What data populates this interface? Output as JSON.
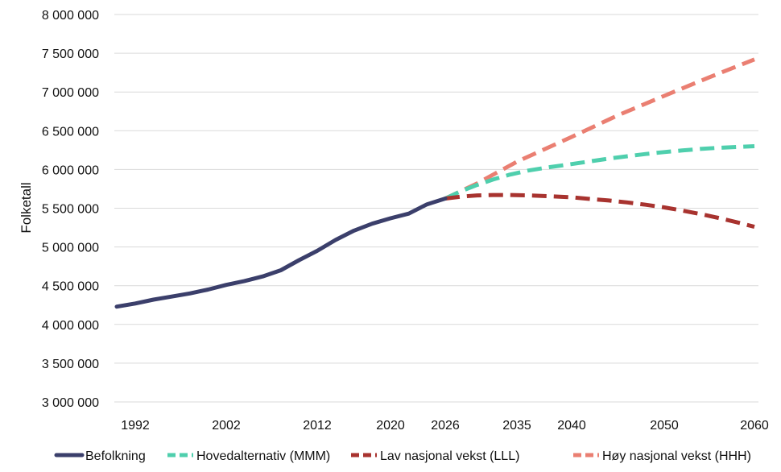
{
  "chart_data": {
    "type": "line",
    "title": "",
    "xlabel": "",
    "ylabel": "Folketall",
    "ylim": [
      3000000,
      8000000
    ],
    "yticks": [
      3000000,
      3500000,
      4000000,
      4500000,
      5000000,
      5500000,
      6000000,
      6500000,
      7000000,
      7500000,
      8000000
    ],
    "ytick_labels": [
      "3 000 000",
      "3 500 000",
      "4 000 000",
      "4 500 000",
      "5 000 000",
      "5 500 000",
      "6 000 000",
      "6 500 000",
      "7 000 000",
      "7 500 000",
      "8 000 000"
    ],
    "xlim": [
      1990,
      2060
    ],
    "xtick_labels": [
      "1992",
      "2002",
      "2012",
      "2020",
      "2026",
      "2035",
      "2040",
      "2050",
      "2060"
    ],
    "grid": true,
    "legend_position": "bottom",
    "series": [
      {
        "name": "Befolkning",
        "color": "#3b3f6b",
        "style": "solid",
        "x": [
          1990,
          1992,
          1994,
          1996,
          1998,
          2000,
          2002,
          2004,
          2006,
          2008,
          2010,
          2012,
          2014,
          2016,
          2018,
          2020,
          2022,
          2024,
          2026
        ],
        "y": [
          4230000,
          4270000,
          4320000,
          4360000,
          4400000,
          4450000,
          4510000,
          4560000,
          4620000,
          4700000,
          4830000,
          4950000,
          5090000,
          5210000,
          5300000,
          5370000,
          5430000,
          5550000,
          5625000
        ]
      },
      {
        "name": "Hovedalternativ (MMM)",
        "color": "#4fcfad",
        "style": "dashed",
        "x": [
          2026,
          2028,
          2030,
          2032,
          2034,
          2036,
          2038,
          2040,
          2042,
          2044,
          2046,
          2048,
          2050,
          2052,
          2054,
          2056,
          2058,
          2060
        ],
        "y": [
          5625000,
          5720000,
          5800000,
          5870000,
          5930000,
          5985000,
          6030000,
          6070000,
          6105000,
          6140000,
          6170000,
          6200000,
          6225000,
          6245000,
          6265000,
          6280000,
          6290000,
          6300000
        ]
      },
      {
        "name": "Lav nasjonal vekst (LLL)",
        "color": "#a8332f",
        "style": "dashed",
        "x": [
          2026,
          2028,
          2030,
          2032,
          2034,
          2036,
          2038,
          2040,
          2042,
          2044,
          2046,
          2048,
          2050,
          2052,
          2054,
          2056,
          2058,
          2060
        ],
        "y": [
          5625000,
          5650000,
          5665000,
          5670000,
          5670000,
          5665000,
          5655000,
          5640000,
          5620000,
          5600000,
          5575000,
          5545000,
          5510000,
          5470000,
          5425000,
          5375000,
          5320000,
          5260000
        ]
      },
      {
        "name": "Høy nasjonal vekst (HHH)",
        "color": "#ea7f72",
        "style": "dashed",
        "x": [
          2026,
          2030,
          2035,
          2040,
          2045,
          2050,
          2055,
          2060
        ],
        "y": [
          5625000,
          5820000,
          6100000,
          6420000,
          6700000,
          6950000,
          7190000,
          7420000
        ]
      }
    ]
  }
}
